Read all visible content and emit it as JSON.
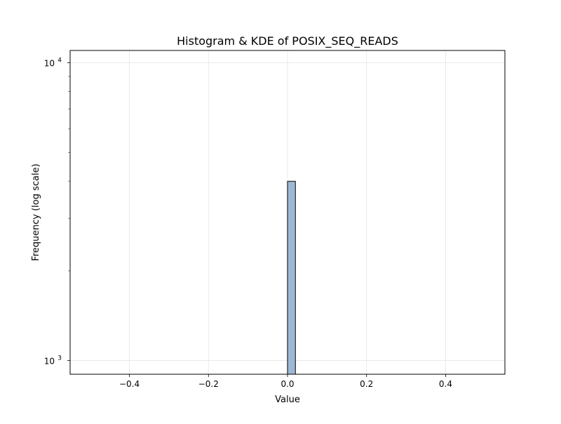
{
  "chart_data": {
    "type": "bar",
    "title": "Histogram & KDE of POSIX_SEQ_READS",
    "xlabel": "Value",
    "ylabel": "Frequency (log scale)",
    "xlim": [
      -0.55,
      0.55
    ],
    "ylim": [
      900,
      11000
    ],
    "yscale": "log",
    "grid": true,
    "x_ticks": [
      {
        "value": -0.4,
        "label": "−0.4"
      },
      {
        "value": -0.2,
        "label": "−0.2"
      },
      {
        "value": 0.0,
        "label": "0.0"
      },
      {
        "value": 0.2,
        "label": "0.2"
      },
      {
        "value": 0.4,
        "label": "0.4"
      }
    ],
    "y_ticks": [
      {
        "value": 1000,
        "base": "10",
        "exp": "3"
      },
      {
        "value": 10000,
        "base": "10",
        "exp": "4"
      }
    ],
    "bins": [
      {
        "x0": 0.0,
        "x1": 0.02,
        "count": 4000
      }
    ],
    "colors": {
      "bar_fill": "#9db8d4",
      "bar_edge": "#000000",
      "grid": "#e6e6e6",
      "axes": "#000000"
    }
  }
}
